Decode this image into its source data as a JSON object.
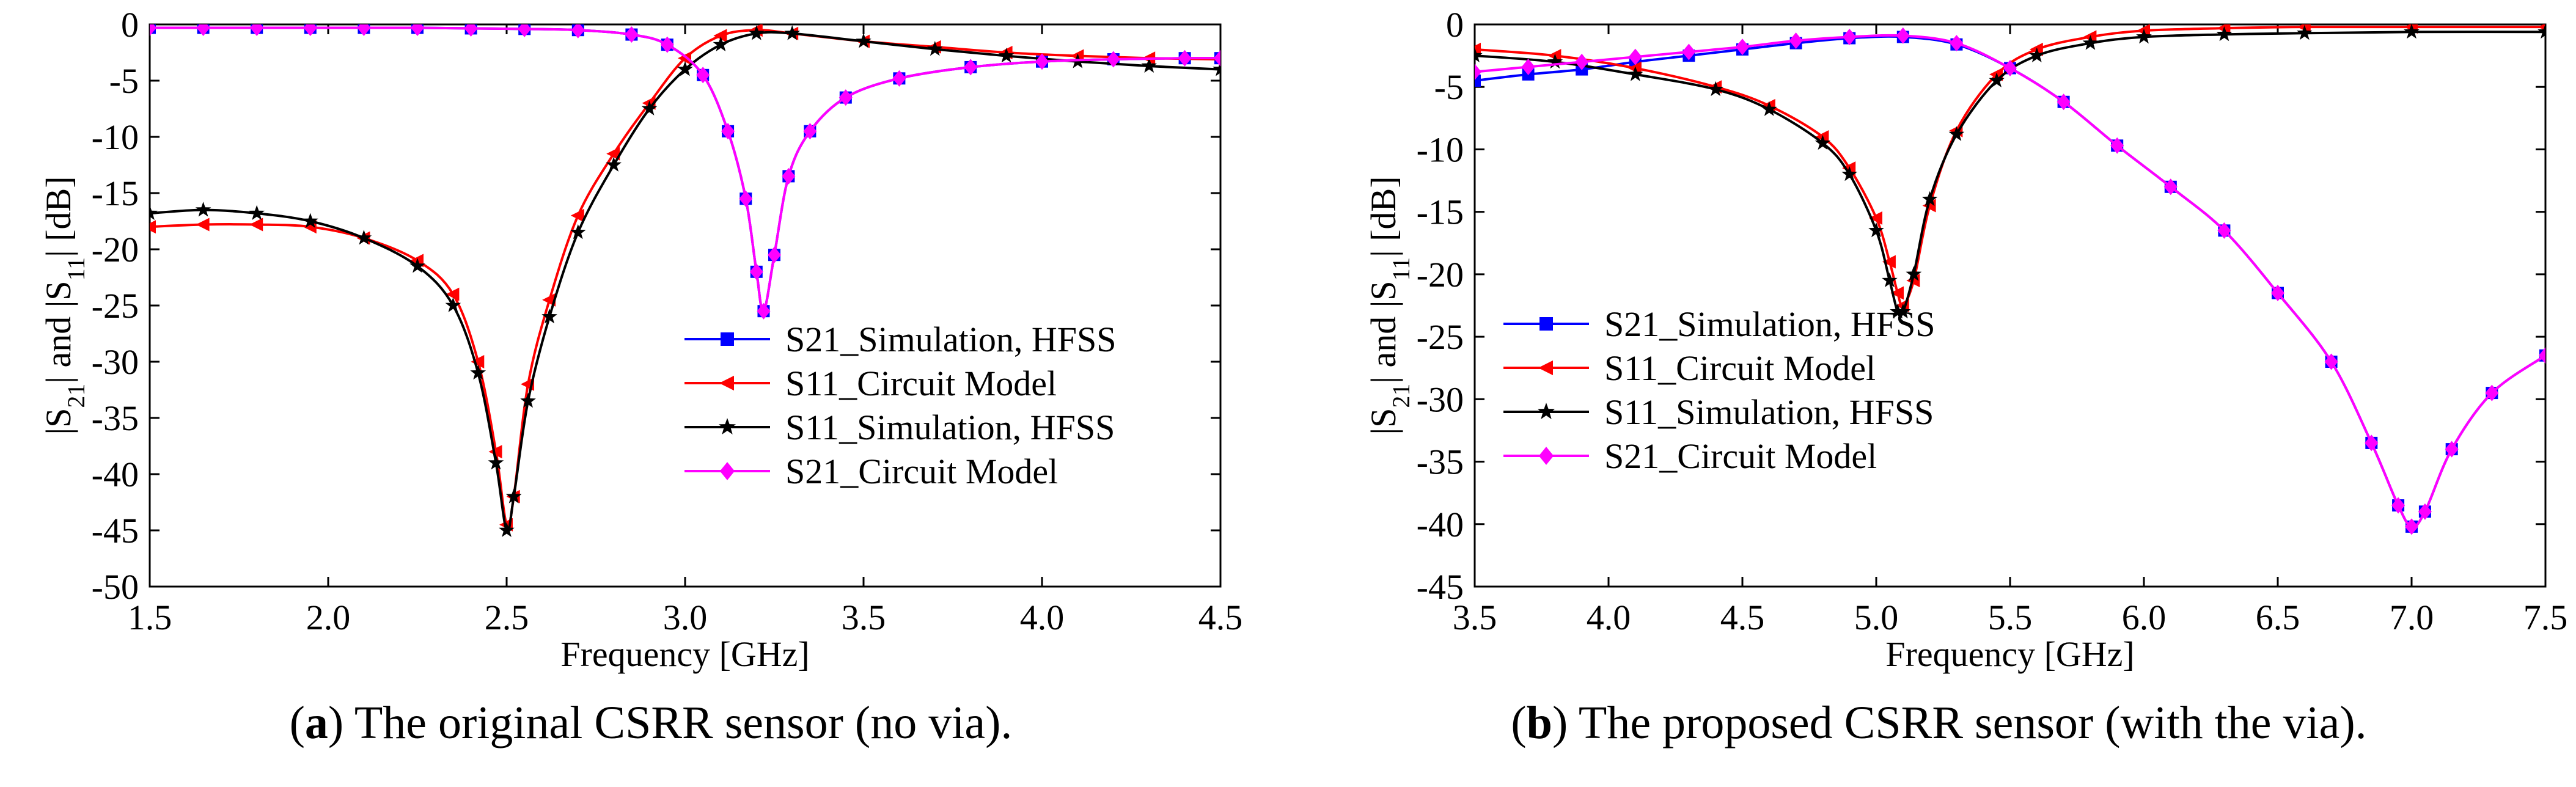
{
  "chart_data": [
    {
      "type": "line",
      "panel_label": "a",
      "caption": "The original CSRR sensor (no via).",
      "xlabel": "Frequency [GHz]",
      "ylabel": "|S21| and |S11| [dB]",
      "ylabel_parts": {
        "pre1": "|S",
        "sub1": "21",
        "mid": "| and |S",
        "sub2": "11",
        "post": "| [dB]"
      },
      "xlim": [
        1.5,
        4.5
      ],
      "ylim": [
        -50,
        0
      ],
      "xticks": [
        1.5,
        2.0,
        2.5,
        3.0,
        3.5,
        4.0,
        4.5
      ],
      "xtick_labels": [
        "1.5",
        "2.0",
        "2.5",
        "3.0",
        "3.5",
        "4.0",
        "4.5"
      ],
      "yticks": [
        0,
        -5,
        -10,
        -15,
        -20,
        -25,
        -30,
        -35,
        -40,
        -45,
        -50
      ],
      "ytick_labels": [
        "0",
        "-5",
        "-10",
        "-15",
        "-20",
        "-25",
        "-30",
        "-35",
        "-40",
        "-45",
        "-50"
      ],
      "legend_position": "bottom-right",
      "series": [
        {
          "name": "S21_Simulation, HFSS",
          "color": "#0000ff",
          "marker": "square",
          "x": [
            1.5,
            1.65,
            1.8,
            1.95,
            2.1,
            2.25,
            2.4,
            2.55,
            2.7,
            2.85,
            2.95,
            3.05,
            3.12,
            3.17,
            3.2,
            3.22,
            3.25,
            3.29,
            3.35,
            3.45,
            3.6,
            3.8,
            4.0,
            4.2,
            4.4,
            4.5
          ],
          "y": [
            -0.3,
            -0.3,
            -0.3,
            -0.3,
            -0.3,
            -0.3,
            -0.35,
            -0.4,
            -0.5,
            -0.9,
            -1.8,
            -4.5,
            -9.5,
            -15.5,
            -22.0,
            -25.5,
            -20.5,
            -13.5,
            -9.5,
            -6.5,
            -4.8,
            -3.8,
            -3.3,
            -3.1,
            -3.0,
            -3.0
          ]
        },
        {
          "name": "S11_Circuit Model",
          "color": "#ff0000",
          "marker": "triangle-left",
          "x": [
            1.5,
            1.65,
            1.8,
            1.95,
            2.1,
            2.25,
            2.35,
            2.42,
            2.47,
            2.5,
            2.52,
            2.56,
            2.62,
            2.7,
            2.8,
            2.9,
            3.0,
            3.1,
            3.2,
            3.3,
            3.5,
            3.7,
            3.9,
            4.1,
            4.3,
            4.5
          ],
          "y": [
            -18.0,
            -17.8,
            -17.8,
            -18.0,
            -19.0,
            -21.0,
            -24.0,
            -30.0,
            -38.0,
            -44.5,
            -42.0,
            -32.0,
            -24.5,
            -17.0,
            -11.5,
            -7.0,
            -3.0,
            -1.0,
            -0.5,
            -0.8,
            -1.5,
            -2.0,
            -2.5,
            -2.8,
            -3.0,
            -3.1
          ]
        },
        {
          "name": "S11_Simulation, HFSS",
          "color": "#000000",
          "marker": "star",
          "x": [
            1.5,
            1.65,
            1.8,
            1.95,
            2.1,
            2.25,
            2.35,
            2.42,
            2.47,
            2.5,
            2.52,
            2.56,
            2.62,
            2.7,
            2.8,
            2.9,
            3.0,
            3.1,
            3.2,
            3.3,
            3.5,
            3.7,
            3.9,
            4.1,
            4.3,
            4.5
          ],
          "y": [
            -16.8,
            -16.5,
            -16.8,
            -17.5,
            -19.0,
            -21.5,
            -25.0,
            -31.0,
            -39.0,
            -45.0,
            -42.0,
            -33.5,
            -26.0,
            -18.5,
            -12.5,
            -7.5,
            -4.0,
            -1.8,
            -0.8,
            -0.8,
            -1.5,
            -2.2,
            -2.8,
            -3.3,
            -3.7,
            -4.0
          ]
        },
        {
          "name": "S21_Circuit Model",
          "color": "#ff00ff",
          "marker": "diamond",
          "x": [
            1.5,
            1.65,
            1.8,
            1.95,
            2.1,
            2.25,
            2.4,
            2.55,
            2.7,
            2.85,
            2.95,
            3.05,
            3.12,
            3.17,
            3.2,
            3.22,
            3.25,
            3.29,
            3.35,
            3.45,
            3.6,
            3.8,
            4.0,
            4.2,
            4.4,
            4.5
          ],
          "y": [
            -0.3,
            -0.3,
            -0.3,
            -0.3,
            -0.3,
            -0.3,
            -0.35,
            -0.4,
            -0.5,
            -0.9,
            -1.8,
            -4.5,
            -9.5,
            -15.5,
            -22.0,
            -25.5,
            -20.5,
            -13.5,
            -9.5,
            -6.5,
            -4.8,
            -3.8,
            -3.3,
            -3.1,
            -3.0,
            -3.0
          ]
        }
      ]
    },
    {
      "type": "line",
      "panel_label": "b",
      "caption": "The proposed CSRR sensor (with the via).",
      "xlabel": "Frequency [GHz]",
      "ylabel": "|S21| and |S11| [dB]",
      "ylabel_parts": {
        "pre1": "|S",
        "sub1": "21",
        "mid": "| and |S",
        "sub2": "11",
        "post": "| [dB]"
      },
      "xlim": [
        3.5,
        7.5
      ],
      "ylim": [
        -45,
        0
      ],
      "xticks": [
        3.5,
        4.0,
        4.5,
        5.0,
        5.5,
        6.0,
        6.5,
        7.0,
        7.5
      ],
      "xtick_labels": [
        "3.5",
        "4.0",
        "4.5",
        "5.0",
        "5.5",
        "6.0",
        "6.5",
        "7.0",
        "7.5"
      ],
      "yticks": [
        0,
        -5,
        -10,
        -15,
        -20,
        -25,
        -30,
        -35,
        -40,
        -45
      ],
      "ytick_labels": [
        "0",
        "-5",
        "-10",
        "-15",
        "-20",
        "-25",
        "-30",
        "-35",
        "-40",
        "-45"
      ],
      "legend_position": "bottom-left",
      "series": [
        {
          "name": "S21_Simulation, HFSS",
          "color": "#0000ff",
          "marker": "square",
          "x": [
            3.5,
            3.7,
            3.9,
            4.1,
            4.3,
            4.5,
            4.7,
            4.9,
            5.1,
            5.3,
            5.5,
            5.7,
            5.9,
            6.1,
            6.3,
            6.5,
            6.7,
            6.85,
            6.95,
            7.0,
            7.05,
            7.15,
            7.3,
            7.5
          ],
          "y": [
            -4.5,
            -4.0,
            -3.6,
            -3.0,
            -2.5,
            -2.0,
            -1.5,
            -1.1,
            -1.0,
            -1.6,
            -3.5,
            -6.2,
            -9.7,
            -13.0,
            -16.5,
            -21.5,
            -27.0,
            -33.5,
            -38.5,
            -40.2,
            -39.0,
            -34.0,
            -29.5,
            -26.5
          ]
        },
        {
          "name": "S11_Circuit Model",
          "color": "#ff0000",
          "marker": "triangle-left",
          "x": [
            3.5,
            3.8,
            4.1,
            4.4,
            4.6,
            4.8,
            4.9,
            5.0,
            5.05,
            5.08,
            5.1,
            5.14,
            5.2,
            5.3,
            5.45,
            5.6,
            5.8,
            6.0,
            6.3,
            6.6,
            7.0,
            7.5
          ],
          "y": [
            -2.0,
            -2.5,
            -3.5,
            -5.0,
            -6.5,
            -9.0,
            -11.5,
            -15.5,
            -19.0,
            -21.5,
            -22.5,
            -20.5,
            -14.5,
            -8.5,
            -4.0,
            -2.0,
            -1.0,
            -0.5,
            -0.3,
            -0.2,
            -0.2,
            -0.2
          ]
        },
        {
          "name": "S11_Simulation, HFSS",
          "color": "#000000",
          "marker": "star",
          "x": [
            3.5,
            3.8,
            4.1,
            4.4,
            4.6,
            4.8,
            4.9,
            5.0,
            5.05,
            5.08,
            5.1,
            5.14,
            5.2,
            5.3,
            5.45,
            5.6,
            5.8,
            6.0,
            6.3,
            6.6,
            7.0,
            7.5
          ],
          "y": [
            -2.5,
            -3.0,
            -4.0,
            -5.2,
            -6.8,
            -9.5,
            -12.0,
            -16.5,
            -20.5,
            -23.0,
            -23.0,
            -20.0,
            -14.0,
            -8.8,
            -4.5,
            -2.5,
            -1.5,
            -1.0,
            -0.8,
            -0.7,
            -0.6,
            -0.6
          ]
        },
        {
          "name": "S21_Circuit Model",
          "color": "#ff00ff",
          "marker": "diamond",
          "x": [
            3.5,
            3.7,
            3.9,
            4.1,
            4.3,
            4.5,
            4.7,
            4.9,
            5.1,
            5.3,
            5.5,
            5.7,
            5.9,
            6.1,
            6.3,
            6.5,
            6.7,
            6.85,
            6.95,
            7.0,
            7.05,
            7.15,
            7.3,
            7.5
          ],
          "y": [
            -3.8,
            -3.4,
            -3.0,
            -2.6,
            -2.2,
            -1.8,
            -1.3,
            -1.0,
            -0.9,
            -1.5,
            -3.5,
            -6.2,
            -9.7,
            -13.0,
            -16.5,
            -21.5,
            -27.0,
            -33.5,
            -38.5,
            -40.2,
            -39.0,
            -34.0,
            -29.5,
            -26.5
          ]
        }
      ]
    }
  ]
}
